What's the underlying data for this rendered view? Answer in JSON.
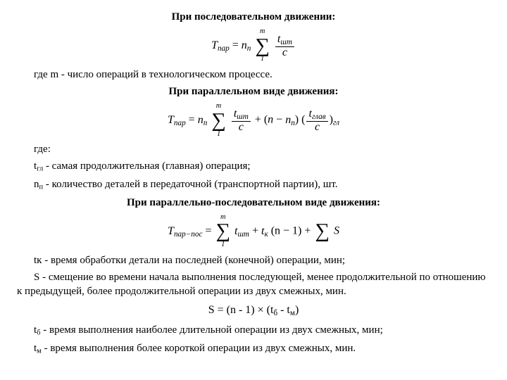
{
  "h1": "При последовательном движении:",
  "f1": {
    "lhs": "T",
    "lhs_sub": "пар",
    "eq": " = ",
    "n": "n",
    "n_sub": "п",
    "sum_top": "m",
    "sum_bot": "1",
    "frac_num_t": "t",
    "frac_num_sub": "шт",
    "frac_den": "c"
  },
  "p1_a": "где m - число операций в технологическом процессе.",
  "h2": "При параллельном виде движения:",
  "f2": {
    "lhs": "T",
    "lhs_sub": "пар",
    "eq": " = ",
    "n": "n",
    "n_sub": "п",
    "sum_top": "m",
    "sum_bot": "1",
    "frac_num_t": "t",
    "frac_num_sub": "шт",
    "frac_den": "c",
    "plus": " + (",
    "n2": "n",
    "minus": " − ",
    "n3": "n",
    "n3_sub": "п",
    "close": ")",
    "paren_open": "(",
    "frac2_num_t": "t",
    "frac2_num_sub": "глав",
    "frac2_den": "c",
    "paren_close": ")",
    "tail_sub": "гл"
  },
  "p2_where": "где:",
  "p2_l1_a": "t",
  "p2_l1_sub": "гл",
  "p2_l1_b": " - самая продолжительная (главная) операция;",
  "p2_l2_a": "n",
  "p2_l2_sub": "п",
  "p2_l2_b": " - количество деталей в передаточной (транспортной партии), шт.",
  "h3": "При параллельно-последовательном виде движения:",
  "f3": {
    "lhs": "T",
    "lhs_sub": "пар−пос",
    "eq": " = ",
    "sum_top": "m",
    "sum_bot": "1",
    "t1": "t",
    "t1_sub": "шт",
    "plus1": " + ",
    "t2": "t",
    "t2_sub": "к",
    "paren": "(n − 1)",
    "plus2": " + ",
    "sigma": "Σ",
    "S": " S"
  },
  "p3_l1": "tк - время обработки детали на последней (конечной) операции, мин;",
  "p3_l2": "S - смещение во времени начала выполнения последующей, менее продолжительной по отношению к предыдущей, более продолжительной операции из двух смежных, мин.",
  "f4_a": "S = (n - 1) × (t",
  "f4_sub1": "б",
  "f4_b": " - t",
  "f4_sub2": "м",
  "f4_c": ")",
  "p4_l1_a": "t",
  "p4_l1_sub": "б",
  "p4_l1_b": " - время выполнения наиболее длительной операции из двух смежных, мин;",
  "p4_l2_a": "t",
  "p4_l2_sub": "м",
  "p4_l2_b": " - время выполнения более короткой операции из двух смежных, мин."
}
